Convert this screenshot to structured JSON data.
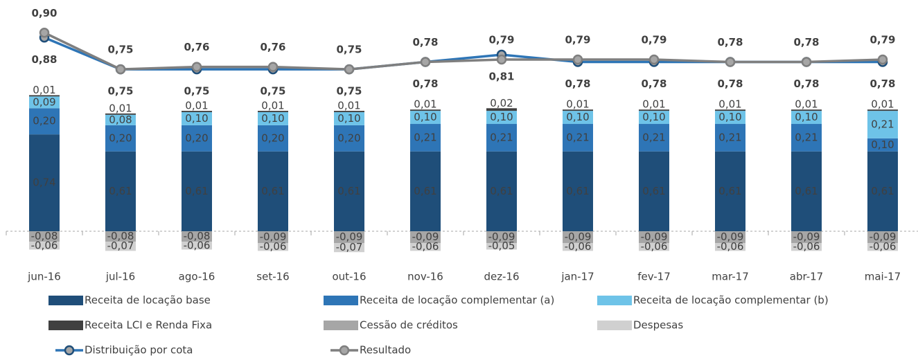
{
  "chart_data": {
    "type": "combo",
    "categories": [
      "jun-16",
      "jul-16",
      "ago-16",
      "set-16",
      "out-16",
      "nov-16",
      "dez-16",
      "jan-17",
      "fev-17",
      "mar-17",
      "abr-17",
      "mai-17"
    ],
    "ylim": [
      -0.2,
      1.0
    ],
    "y2lim": [
      0.6,
      1.0
    ],
    "grid": false,
    "legend": "bottom",
    "series": [
      {
        "name": "Receita de locação base",
        "type": "bar",
        "color": "#1f4e79",
        "values": [
          0.74,
          0.61,
          0.61,
          0.61,
          0.61,
          0.61,
          0.61,
          0.61,
          0.61,
          0.61,
          0.61,
          0.61
        ],
        "value_labels": [
          "0,74",
          "0,61",
          "0,61",
          "0,61",
          "0,61",
          "0,61",
          "0,61",
          "0,61",
          "0,61",
          "0,61",
          "0,61",
          "0,61"
        ]
      },
      {
        "name": "Receita de locação complementar (a)",
        "type": "bar",
        "color": "#2e75b6",
        "values": [
          0.2,
          0.2,
          0.2,
          0.2,
          0.2,
          0.21,
          0.21,
          0.21,
          0.21,
          0.21,
          0.21,
          0.1
        ],
        "value_labels": [
          "0,20",
          "0,20",
          "0,20",
          "0,20",
          "0,20",
          "0,21",
          "0,21",
          "0,21",
          "0,21",
          "0,21",
          "0,21",
          "0,10"
        ]
      },
      {
        "name": "Receita de locação complementar (b)",
        "type": "bar",
        "color": "#6ec3e8",
        "values": [
          0.09,
          0.08,
          0.1,
          0.1,
          0.1,
          0.1,
          0.1,
          0.1,
          0.1,
          0.1,
          0.1,
          0.21
        ],
        "value_labels": [
          "0,09",
          "0,08",
          "0,10",
          "0,10",
          "0,10",
          "0,10",
          "0,10",
          "0,10",
          "0,10",
          "0,10",
          "0,10",
          "0,21"
        ]
      },
      {
        "name": "Receita LCI e Renda Fixa",
        "type": "bar",
        "color": "#404040",
        "values": [
          0.01,
          0.01,
          0.01,
          0.01,
          0.01,
          0.01,
          0.02,
          0.01,
          0.01,
          0.01,
          0.01,
          0.01
        ],
        "value_labels": [
          "0,01",
          "0,01",
          "0,01",
          "0,01",
          "0,01",
          "0,01",
          "0,02",
          "0,01",
          "0,01",
          "0,01",
          "0,01",
          "0,01"
        ]
      },
      {
        "name": "Cessão de créditos",
        "type": "bar",
        "color": "#a6a6a6",
        "values": [
          -0.08,
          -0.08,
          -0.08,
          -0.09,
          -0.09,
          -0.09,
          -0.09,
          -0.09,
          -0.09,
          -0.09,
          -0.09,
          -0.09
        ],
        "value_labels": [
          "-0,08",
          "-0,08",
          "-0,08",
          "-0,09",
          "-0,09",
          "-0,09",
          "-0,09",
          "-0,09",
          "-0,09",
          "-0,09",
          "-0,09",
          "-0,09"
        ]
      },
      {
        "name": "Despesas",
        "type": "bar",
        "color": "#d0d0d0",
        "values": [
          -0.06,
          -0.07,
          -0.06,
          -0.06,
          -0.07,
          -0.06,
          -0.05,
          -0.06,
          -0.06,
          -0.06,
          -0.06,
          -0.06
        ],
        "value_labels": [
          "-0,06",
          "-0,07",
          "-0,06",
          "-0,06",
          "-0,07",
          "-0,06",
          "-0,05",
          "-0,06",
          "-0,06",
          "-0,06",
          "-0,06",
          "-0,06"
        ]
      },
      {
        "name": "Distribuição por cota",
        "type": "line",
        "axis": "y2",
        "color": "#2e75b6",
        "values": [
          0.88,
          0.75,
          0.75,
          0.75,
          0.75,
          0.78,
          0.81,
          0.78,
          0.78,
          0.78,
          0.78,
          0.78
        ],
        "value_labels": [
          "0,88",
          "0,75",
          "0,75",
          "0,75",
          "0,75",
          "0,78",
          "0,81",
          "0,78",
          "0,78",
          "0,78",
          "0,78",
          "0,78"
        ]
      },
      {
        "name": "Resultado",
        "type": "line",
        "axis": "y2",
        "color": "#7f7f7f",
        "values": [
          0.9,
          0.75,
          0.76,
          0.76,
          0.75,
          0.78,
          0.79,
          0.79,
          0.79,
          0.78,
          0.78,
          0.79
        ],
        "value_labels": [
          "0,90",
          "0,75",
          "0,76",
          "0,76",
          "0,75",
          "0,78",
          "0,79",
          "0,79",
          "0,79",
          "0,78",
          "0,78",
          "0,79"
        ]
      }
    ]
  }
}
